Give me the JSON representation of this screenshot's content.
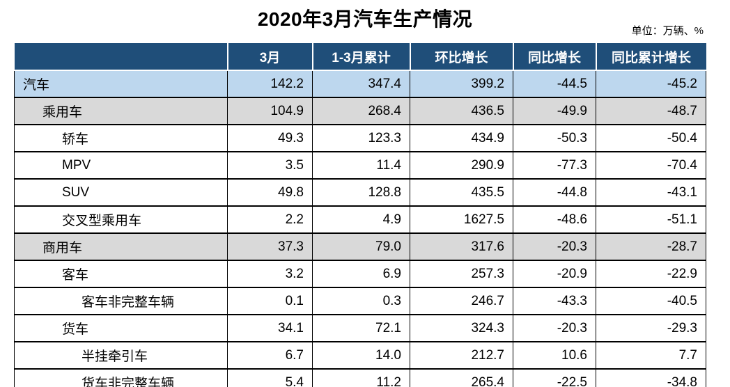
{
  "title": "2020年3月汽车生产情况",
  "unit_note": "单位：万辆、%",
  "colors": {
    "header_bg": "#1F4E79",
    "header_text": "#FFFFFF",
    "row_highlight_blue": "#BDD7EE",
    "row_highlight_gray": "#D9D9D9",
    "border": "#000000"
  },
  "chart_data": {
    "type": "table",
    "title": "2020年3月汽车生产情况",
    "unit": "万辆、%",
    "columns": [
      "",
      "3月",
      "1-3月累计",
      "环比增长",
      "同比增长",
      "同比累计增长"
    ],
    "rows": [
      {
        "label": "汽车",
        "indent": 0,
        "style": "blue",
        "values": [
          "142.2",
          "347.4",
          "399.2",
          "-44.5",
          "-45.2"
        ]
      },
      {
        "label": "乘用车",
        "indent": 1,
        "style": "gray",
        "values": [
          "104.9",
          "268.4",
          "436.5",
          "-49.9",
          "-48.7"
        ]
      },
      {
        "label": "轿车",
        "indent": 2,
        "style": "white",
        "values": [
          "49.3",
          "123.3",
          "434.9",
          "-50.3",
          "-50.4"
        ]
      },
      {
        "label": "MPV",
        "indent": 2,
        "style": "white",
        "values": [
          "3.5",
          "11.4",
          "290.9",
          "-77.3",
          "-70.4"
        ]
      },
      {
        "label": "SUV",
        "indent": 2,
        "style": "white",
        "values": [
          "49.8",
          "128.8",
          "435.5",
          "-44.8",
          "-43.1"
        ]
      },
      {
        "label": "交叉型乘用车",
        "indent": 2,
        "style": "white",
        "values": [
          "2.2",
          "4.9",
          "1627.5",
          "-48.6",
          "-51.1"
        ]
      },
      {
        "label": "商用车",
        "indent": 1,
        "style": "gray",
        "values": [
          "37.3",
          "79.0",
          "317.6",
          "-20.3",
          "-28.7"
        ]
      },
      {
        "label": "客车",
        "indent": 2,
        "style": "white",
        "values": [
          "3.2",
          "6.9",
          "257.3",
          "-20.9",
          "-22.9"
        ]
      },
      {
        "label": "客车非完整车辆",
        "indent": 3,
        "style": "white",
        "values": [
          "0.1",
          "0.3",
          "246.7",
          "-43.3",
          "-40.5"
        ]
      },
      {
        "label": "货车",
        "indent": 2,
        "style": "white",
        "values": [
          "34.1",
          "72.1",
          "324.3",
          "-20.3",
          "-29.3"
        ]
      },
      {
        "label": "半挂牵引车",
        "indent": 3,
        "style": "white",
        "values": [
          "6.7",
          "14.0",
          "212.7",
          "10.6",
          "7.7"
        ]
      },
      {
        "label": "货车非完整车辆",
        "indent": 3,
        "style": "white",
        "values": [
          "5.4",
          "11.2",
          "265.4",
          "-22.5",
          "-34.8"
        ]
      }
    ]
  }
}
